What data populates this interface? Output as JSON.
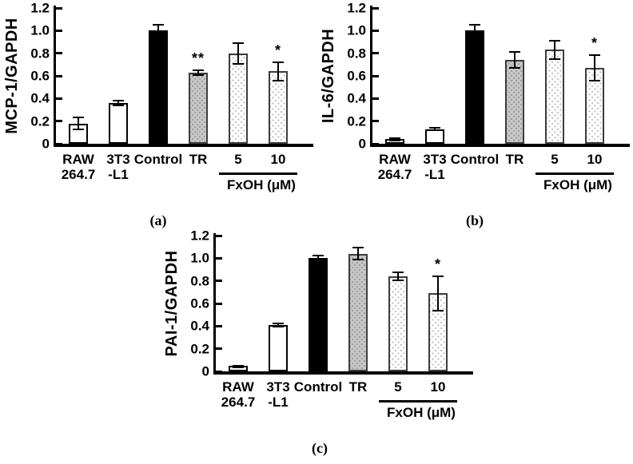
{
  "figure": {
    "background": "#ffffff",
    "panel_letters": [
      "(a)",
      "(b)",
      "(c)"
    ]
  },
  "colors": {
    "axis": "#000000",
    "bar_open_fill": "#ffffff",
    "bar_solid_fill": "#000000",
    "bar_gray_fill": "#c7c7c7",
    "bar_gray_dot": "#9e9e9e",
    "bar_stipple_fill": "#fdfdfd",
    "bar_stipple_dot": "#c3c3c3"
  },
  "chart_data": [
    {
      "type": "bar",
      "panel_letter": "(a)",
      "title": "",
      "xlabel": "",
      "ylabel": "MCP-1/GAPDH",
      "ylim": [
        0,
        1.2
      ],
      "grid": false,
      "legend": null,
      "ytick_values": [
        0,
        0.2,
        0.4,
        0.6,
        0.8,
        1.0,
        1.2
      ],
      "ytick_labels": [
        "0",
        "0.2",
        "0.4",
        "0.6",
        "0.8",
        "1.0",
        "1.2"
      ],
      "categories": [
        "RAW 264.7",
        "3T3-L1",
        "Control",
        "TR",
        "FxOH 5 μM",
        "FxOH 10 μM"
      ],
      "category_labels": [
        [
          "RAW",
          "264.7"
        ],
        [
          "3T3",
          "-L1"
        ],
        [
          "Control"
        ],
        [
          "TR"
        ],
        [
          "5"
        ],
        [
          "10"
        ]
      ],
      "values": [
        0.18,
        0.36,
        1.0,
        0.63,
        0.8,
        0.64
      ],
      "errors": [
        0.06,
        0.03,
        0.06,
        0.03,
        0.1,
        0.09
      ],
      "significance": [
        "",
        "",
        "",
        "**",
        "",
        "*"
      ],
      "bar_styles": [
        "open",
        "open",
        "solid",
        "graydots",
        "stipple",
        "stipple"
      ],
      "group_label": "FxOH (μM)",
      "group_indices": [
        4,
        5
      ]
    },
    {
      "type": "bar",
      "panel_letter": "(b)",
      "title": "",
      "xlabel": "",
      "ylabel": "IL-6/GAPDH",
      "ylim": [
        0,
        1.2
      ],
      "grid": false,
      "legend": null,
      "ytick_values": [
        0,
        0.2,
        0.4,
        0.6,
        0.8,
        1.0,
        1.2
      ],
      "ytick_labels": [
        "0",
        "0.2",
        "0.4",
        "0.6",
        "0.8",
        "1.0",
        "1.2"
      ],
      "categories": [
        "RAW 264.7",
        "3T3-L1",
        "Control",
        "TR",
        "FxOH 5 μM",
        "FxOH 10 μM"
      ],
      "category_labels": [
        [
          "RAW",
          "264.7"
        ],
        [
          "3T3",
          "-L1"
        ],
        [
          "Control"
        ],
        [
          "TR"
        ],
        [
          "5"
        ],
        [
          "10"
        ]
      ],
      "values": [
        0.04,
        0.13,
        1.0,
        0.74,
        0.83,
        0.67
      ],
      "errors": [
        0.02,
        0.02,
        0.06,
        0.08,
        0.09,
        0.12
      ],
      "significance": [
        "",
        "",
        "",
        "",
        "",
        "*"
      ],
      "bar_styles": [
        "open",
        "open",
        "solid",
        "graydots",
        "stipple",
        "stipple"
      ],
      "group_label": "FxOH (μM)",
      "group_indices": [
        4,
        5
      ]
    },
    {
      "type": "bar",
      "panel_letter": "(c)",
      "title": "",
      "xlabel": "",
      "ylabel": "PAI-1/GAPDH",
      "ylim": [
        0,
        1.2
      ],
      "grid": false,
      "legend": null,
      "ytick_values": [
        0,
        0.2,
        0.4,
        0.6,
        0.8,
        1.0,
        1.2
      ],
      "ytick_labels": [
        "0",
        "0.2",
        "0.4",
        "0.6",
        "0.8",
        "1.0",
        "1.2"
      ],
      "categories": [
        "RAW 264.7",
        "3T3-L1",
        "Control",
        "TR",
        "FxOH 5 μM",
        "FxOH 10 μM"
      ],
      "category_labels": [
        [
          "RAW",
          "264.7"
        ],
        [
          "3T3",
          "-L1"
        ],
        [
          "Control"
        ],
        [
          "TR"
        ],
        [
          "5"
        ],
        [
          "10"
        ]
      ],
      "values": [
        0.05,
        0.41,
        1.0,
        1.04,
        0.84,
        0.69
      ],
      "errors": [
        0.01,
        0.02,
        0.03,
        0.06,
        0.04,
        0.16
      ],
      "significance": [
        "",
        "",
        "",
        "",
        "",
        "*"
      ],
      "bar_styles": [
        "open",
        "open",
        "solid",
        "graydots",
        "stipple",
        "stipple"
      ],
      "group_label": "FxOH (μM)",
      "group_indices": [
        4,
        5
      ]
    }
  ]
}
